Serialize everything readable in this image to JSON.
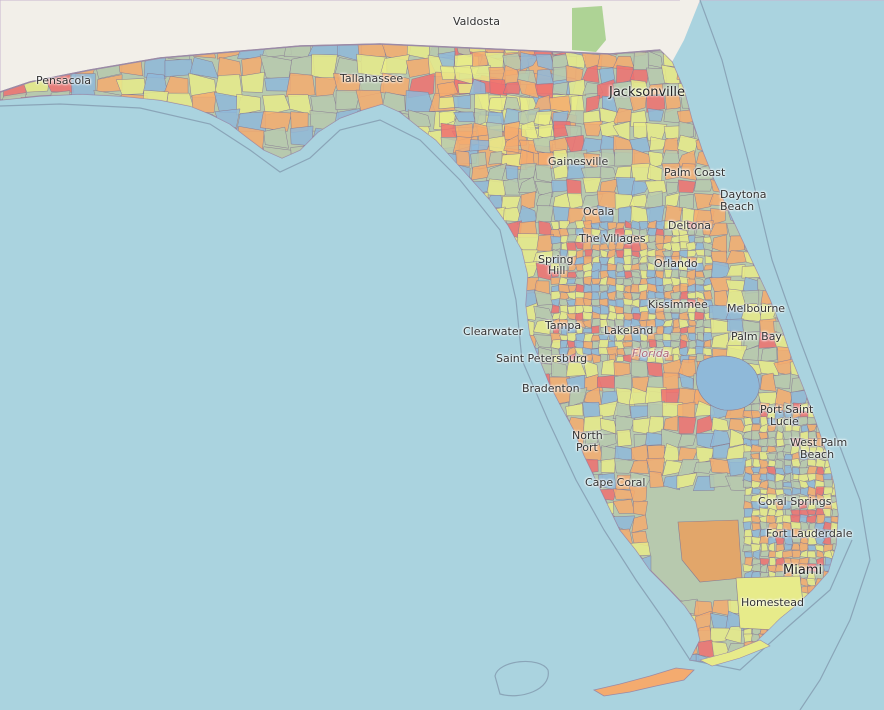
{
  "map": {
    "colors": {
      "water": "#aad3df",
      "land_north": "#f2efe9",
      "park_green": "#9ccc80",
      "border": "#9b8aa6",
      "choropleth": [
        "#e7eb8a",
        "#f4ab6f",
        "#8fb9d9",
        "#b7c9ae",
        "#ee7070"
      ]
    },
    "labels": {
      "valdosta": "Valdosta",
      "pensacola": "Pensacola",
      "tallahassee": "Tallahassee",
      "jacksonville": "Jacksonville",
      "gainesville": "Gainesville",
      "palm_coast": "Palm Coast",
      "daytona_1": "Daytona",
      "daytona_2": "Beach",
      "ocala": "Ocala",
      "deltona": "Deltona",
      "the_villages": "The Villages",
      "spring_1": "Spring",
      "spring_2": "Hill",
      "orlando": "Orlando",
      "kissimmee": "Kissimmee",
      "melbourne": "Melbourne",
      "clearwater": "Clearwater",
      "tampa": "Tampa",
      "lakeland": "Lakeland",
      "palm_bay": "Palm Bay",
      "saint_petersburg": "Saint Petersburg",
      "florida": "Florida",
      "bradenton": "Bradenton",
      "port_st_lucie_1": "Port Saint",
      "port_st_lucie_2": "Lucie",
      "north_port_1": "North",
      "north_port_2": "Port",
      "west_palm_1": "West Palm",
      "west_palm_2": "Beach",
      "cape_coral": "Cape Coral",
      "coral_springs": "Coral Springs",
      "fort_lauderdale": "Fort Lauderdale",
      "miami": "Miami",
      "homestead": "Homestead"
    }
  }
}
